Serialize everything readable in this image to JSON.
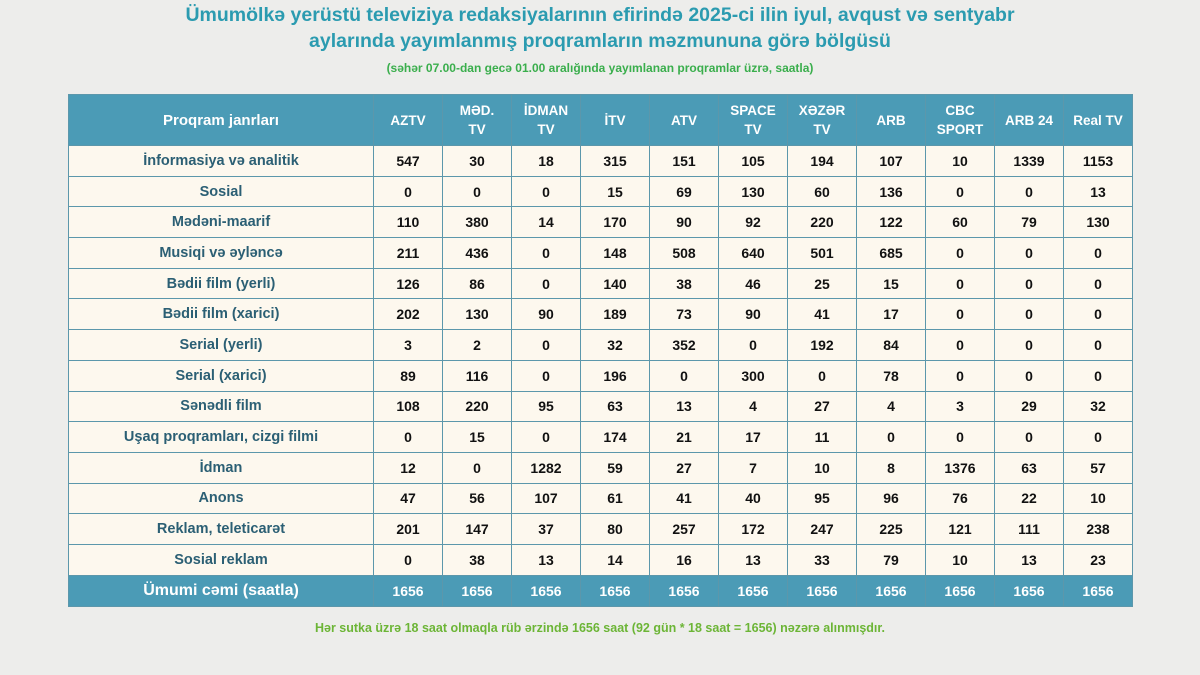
{
  "title_line1": "Ümumölkə yerüstü televiziya redaksiyalarının efirində 2025-ci ilin iyul, avqust və sentyabr",
  "title_line2": "aylarında yayımlanmış proqramların məzmununa görə bölgüsü",
  "subtitle": "(səhər 07.00-dan gecə 01.00 aralığında yayımlanan proqramlar üzrə, saatla)",
  "table": {
    "header_label": "Proqram janrları",
    "channels": [
      [
        "AZTV"
      ],
      [
        "MƏD.",
        "TV"
      ],
      [
        "İDMAN",
        "TV"
      ],
      [
        "İTV"
      ],
      [
        "ATV"
      ],
      [
        "SPACE",
        "TV"
      ],
      [
        "XƏZƏR",
        "TV"
      ],
      [
        "ARB"
      ],
      [
        "CBC",
        "SPORT"
      ],
      [
        "ARB 24"
      ],
      [
        "Real TV"
      ]
    ],
    "rows": [
      {
        "genre": "İnformasiya və analitik",
        "values": [
          "547",
          "30",
          "18",
          "315",
          "151",
          "105",
          "194",
          "107",
          "10",
          "1339",
          "1153"
        ]
      },
      {
        "genre": "Sosial",
        "values": [
          "0",
          "0",
          "0",
          "15",
          "69",
          "130",
          "60",
          "136",
          "0",
          "0",
          "13"
        ]
      },
      {
        "genre": "Mədəni-maarif",
        "values": [
          "110",
          "380",
          "14",
          "170",
          "90",
          "92",
          "220",
          "122",
          "60",
          "79",
          "130"
        ]
      },
      {
        "genre": "Musiqi və əyləncə",
        "values": [
          "211",
          "436",
          "0",
          "148",
          "508",
          "640",
          "501",
          "685",
          "0",
          "0",
          "0"
        ]
      },
      {
        "genre": "Bədii film (yerli)",
        "values": [
          "126",
          "86",
          "0",
          "140",
          "38",
          "46",
          "25",
          "15",
          "0",
          "0",
          "0"
        ]
      },
      {
        "genre": "Bədii film (xarici)",
        "values": [
          "202",
          "130",
          "90",
          "189",
          "73",
          "90",
          "41",
          "17",
          "0",
          "0",
          "0"
        ]
      },
      {
        "genre": "Serial (yerli)",
        "values": [
          "3",
          "2",
          "0",
          "32",
          "352",
          "0",
          "192",
          "84",
          "0",
          "0",
          "0"
        ]
      },
      {
        "genre": "Serial (xarici)",
        "values": [
          "89",
          "116",
          "0",
          "196",
          "0",
          "300",
          "0",
          "78",
          "0",
          "0",
          "0"
        ]
      },
      {
        "genre": "Sənədli film",
        "values": [
          "108",
          "220",
          "95",
          "63",
          "13",
          "4",
          "27",
          "4",
          "3",
          "29",
          "32"
        ]
      },
      {
        "genre": "Uşaq proqramları, cizgi filmi",
        "values": [
          "0",
          "15",
          "0",
          "174",
          "21",
          "17",
          "11",
          "0",
          "0",
          "0",
          "0"
        ]
      },
      {
        "genre": "İdman",
        "values": [
          "12",
          "0",
          "1282",
          "59",
          "27",
          "7",
          "10",
          "8",
          "1376",
          "63",
          "57"
        ]
      },
      {
        "genre": "Anons",
        "values": [
          "47",
          "56",
          "107",
          "61",
          "41",
          "40",
          "95",
          "96",
          "76",
          "22",
          "10"
        ]
      },
      {
        "genre": "Reklam, teleticarət",
        "values": [
          "201",
          "147",
          "37",
          "80",
          "257",
          "172",
          "247",
          "225",
          "121",
          "111",
          "238"
        ]
      },
      {
        "genre": "Sosial reklam",
        "values": [
          "0",
          "38",
          "13",
          "14",
          "16",
          "13",
          "33",
          "79",
          "10",
          "13",
          "23"
        ]
      }
    ],
    "total": {
      "genre": "Ümumi cəmi (saatla)",
      "values": [
        "1656",
        "1656",
        "1656",
        "1656",
        "1656",
        "1656",
        "1656",
        "1656",
        "1656",
        "1656",
        "1656"
      ]
    }
  },
  "note": "Hər sutka üzrə 18 saat olmaqla rüb ərzində 1656 saat (92 gün * 18 saat = 1656) nəzərə alınmışdır."
}
